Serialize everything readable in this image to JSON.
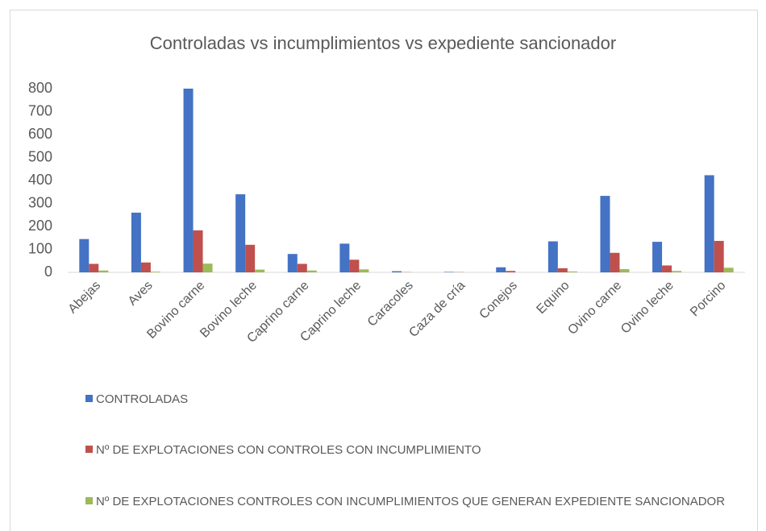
{
  "chart_data": {
    "type": "bar",
    "title": "Controladas vs incumplimientos vs expediente sancionador",
    "categories": [
      "Abejas",
      "Aves",
      "Bovino carne",
      "Bovino leche",
      "Caprino carne",
      "Caprino leche",
      "Caracoles",
      "Caza de cría",
      "Conejos",
      "Equino",
      "Ovino carne",
      "Ovino leche",
      "Porcino"
    ],
    "series": [
      {
        "name": "CONTROLADAS",
        "color": "#4472c4",
        "values": [
          145,
          260,
          800,
          340,
          80,
          125,
          5,
          2,
          22,
          135,
          333,
          133,
          423
        ]
      },
      {
        "name": "Nº DE EXPLOTACIONES CON CONTROLES CON INCUMPLIMIENTO",
        "color": "#c0504d",
        "values": [
          37,
          43,
          183,
          120,
          37,
          55,
          1,
          1,
          6,
          18,
          85,
          30,
          137
        ]
      },
      {
        "name": "Nº DE EXPLOTACIONES CONTROLES CON INCUMPLIMIENTOS QUE GENERAN EXPEDIENTE SANCIONADOR",
        "color": "#9bbb59",
        "values": [
          8,
          3,
          38,
          12,
          8,
          13,
          0,
          0,
          0,
          4,
          14,
          6,
          20
        ]
      }
    ],
    "ylim": [
      0,
      800
    ],
    "yticks": [
      0,
      100,
      200,
      300,
      400,
      500,
      600,
      700,
      800
    ],
    "grid": false
  }
}
